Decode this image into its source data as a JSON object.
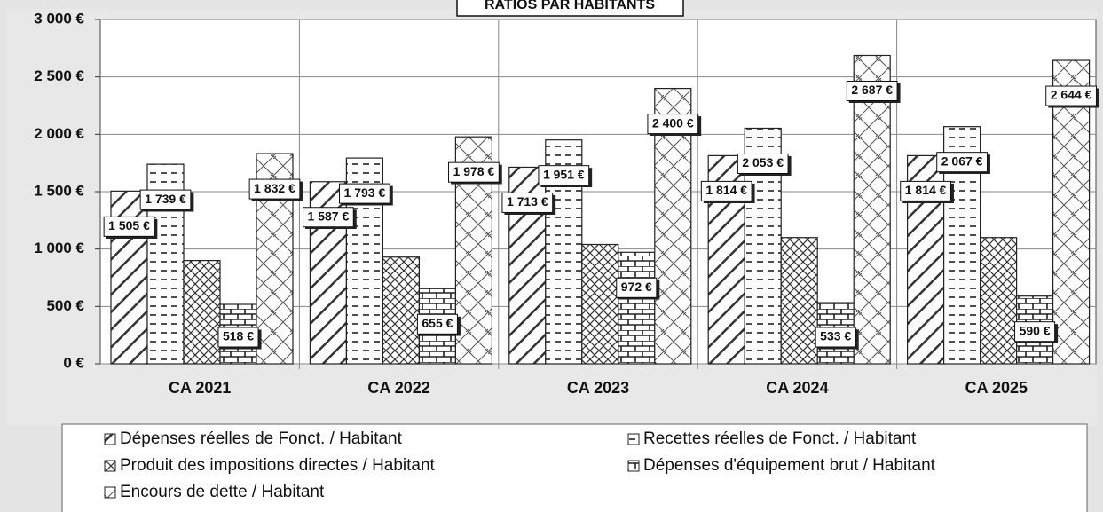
{
  "chart_data": {
    "type": "bar",
    "title": "RATIOS PAR HABITANTS",
    "categories": [
      "CA 2021",
      "CA 2022",
      "CA 2023",
      "CA 2024",
      "CA 2025"
    ],
    "ylim": [
      0,
      3000
    ],
    "yticks": [
      {
        "value": 0,
        "label": "0 €"
      },
      {
        "value": 500,
        "label": "500 €"
      },
      {
        "value": 1000,
        "label": "1 000 €"
      },
      {
        "value": 1500,
        "label": "1 500 €"
      },
      {
        "value": 2000,
        "label": "2 000 €"
      },
      {
        "value": 2500,
        "label": "2 500 €"
      },
      {
        "value": 3000,
        "label": "3 000 €"
      }
    ],
    "grid": true,
    "series": [
      {
        "name": "Dépenses réelles de Fonct. / Habitant",
        "color": "#ffffff",
        "values": [
          1505,
          1587,
          1713,
          1814,
          1814
        ],
        "value_labels": [
          "1 505 €",
          "1 587 €",
          "1 713 €",
          "1 814 €",
          "1 814 €"
        ]
      },
      {
        "name": "Recettes réelles de Fonct. / Habitant",
        "color": "#ffffff",
        "values": [
          1739,
          1793,
          1951,
          2053,
          2067
        ],
        "value_labels": [
          "1 739 €",
          "1 793 €",
          "1 951 €",
          "2 053 €",
          "2 067 €"
        ]
      },
      {
        "name": "Produit des impositions directes / Habitant",
        "color": "#ffffff",
        "values": [
          900,
          930,
          1040,
          1100,
          1100
        ]
      },
      {
        "name": "Dépenses d'équipement brut / Habitant",
        "color": "#ffffff",
        "values": [
          518,
          655,
          972,
          533,
          590
        ],
        "value_labels": [
          "518 €",
          "655 €",
          "972 €",
          "533 €",
          "590 €"
        ]
      },
      {
        "name": "Encours de dette / Habitant",
        "color": "#ffffff",
        "values": [
          1832,
          1978,
          2400,
          2687,
          2644
        ],
        "value_labels": [
          "1 832 €",
          "1 978 €",
          "2 400 €",
          "2 687 €",
          "2 644 €"
        ]
      }
    ]
  }
}
